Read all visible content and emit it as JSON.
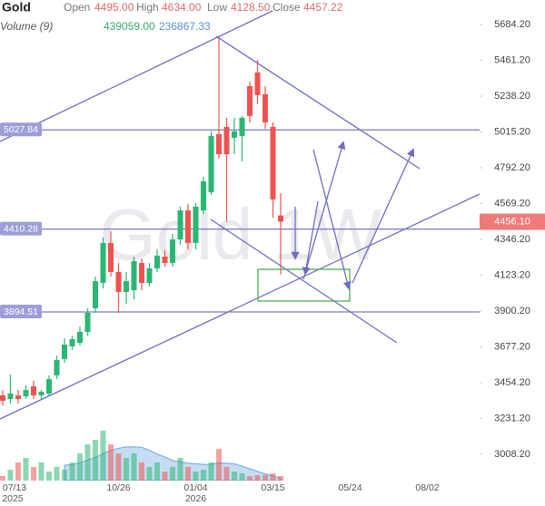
{
  "chart_data": {
    "type": "candlestick",
    "title": "Gold",
    "watermark": "Gold 1W",
    "header": {
      "open_label": "Open",
      "open": {
        "value": 4495,
        "label": "4495.00"
      },
      "high_label": "High",
      "high": {
        "value": 4634,
        "label": "4634.00"
      },
      "low_label": "Low",
      "low": {
        "value": 4128.5,
        "label": "4128.50"
      },
      "close_label": "Close",
      "close": 4457.22
    },
    "volume_header": {
      "label": "Volume (9)",
      "volume": {
        "value": 439059,
        "label": "439059.00"
      },
      "ma": 236867.33
    },
    "categories": [
      "07/13",
      null,
      null,
      null,
      null,
      null,
      null,
      null,
      null,
      null,
      null,
      null,
      null,
      null,
      null,
      "10/26",
      null,
      null,
      null,
      null,
      null,
      null,
      null,
      null,
      null,
      "01/04",
      null,
      null,
      null,
      null,
      null,
      null,
      null,
      null,
      null,
      "03/15",
      null,
      null,
      null,
      null,
      null,
      null,
      null,
      null,
      null,
      "05/24",
      null,
      null,
      null,
      null,
      null,
      null,
      null,
      null,
      null,
      "08/02",
      null,
      null,
      null,
      null,
      null,
      null
    ],
    "years": [
      "2025",
      null,
      null,
      null,
      null,
      null,
      null,
      null,
      null,
      null,
      null,
      null,
      null,
      null,
      null,
      null,
      null,
      null,
      null,
      null,
      null,
      null,
      null,
      null,
      null,
      "2026",
      null,
      null,
      null,
      null,
      null,
      null,
      null,
      null,
      null,
      null,
      null,
      null,
      null,
      null,
      null,
      null,
      null,
      null,
      null,
      null,
      null,
      null,
      null,
      null,
      null,
      null,
      null,
      null,
      null,
      null,
      null,
      null,
      null,
      null,
      null,
      null
    ],
    "open": [
      3375,
      3352,
      3375,
      3369,
      3431,
      3375,
      3386,
      3499,
      3601,
      3680,
      3702,
      3770,
      3917,
      4075,
      4324,
      4143,
      4019,
      4030,
      4199,
      4075,
      4166,
      4239,
      4199,
      4346,
      4527,
      4324,
      4527,
      4640,
      5002,
      5047,
      4979,
      4990,
      5301,
      5386,
      5250,
      5047,
      4495,
      null,
      null,
      null,
      null,
      null,
      null,
      null,
      null,
      null,
      null,
      null,
      null,
      null,
      null,
      null,
      null,
      null,
      null,
      null,
      null,
      null,
      null,
      null,
      null,
      null
    ],
    "high": [
      3408,
      3504,
      3408,
      3437,
      3465,
      3408,
      3499,
      3623,
      3731,
      3747,
      3804,
      3917,
      4115,
      4358,
      4397,
      4199,
      4143,
      4239,
      4228,
      4199,
      4284,
      4279,
      4380,
      4550,
      4567,
      4572,
      4736,
      5019,
      5612,
      5103,
      5103,
      5115,
      5329,
      5465,
      5301,
      5075,
      4634,
      null,
      null,
      null,
      null,
      null,
      null,
      null,
      null,
      null,
      null,
      null,
      null,
      null,
      null,
      null,
      null,
      null,
      null,
      null,
      null,
      null,
      null,
      null,
      null,
      null
    ],
    "low": [
      3312,
      3324,
      3324,
      3352,
      3352,
      3352,
      3369,
      3476,
      3578,
      3657,
      3685,
      3747,
      3889,
      4041,
      4115,
      3889,
      3945,
      3973,
      4030,
      4053,
      4143,
      4177,
      4177,
      4312,
      4284,
      4284,
      4505,
      4623,
      4849,
      4454,
      4877,
      4832,
      5075,
      5188,
      5036,
      4482,
      4128.5,
      null,
      null,
      null,
      null,
      null,
      null,
      null,
      null,
      null,
      null,
      null,
      null,
      null,
      null,
      null,
      null,
      null,
      null,
      null,
      null,
      null,
      null,
      null,
      null,
      null
    ],
    "close": [
      3341,
      3386,
      3352,
      3408,
      3375,
      3397,
      3476,
      3595,
      3691,
      3725,
      3770,
      3889,
      4086,
      4324,
      4143,
      4019,
      4086,
      4211,
      4075,
      4166,
      4245,
      4199,
      4346,
      4527,
      4324,
      4550,
      4708,
      4990,
      4877,
      4877,
      5019,
      5103,
      5115,
      5245,
      5075,
      4595,
      4457.22,
      null,
      null,
      null,
      null,
      null,
      null,
      null,
      null,
      null,
      null,
      null,
      null,
      null,
      null,
      null,
      null,
      null,
      null,
      null,
      null,
      null,
      null,
      null,
      null,
      null
    ],
    "up_color": "#2bb673",
    "down_color": "#ef5350",
    "volume": [
      440000,
      1060000,
      1770000,
      2210000,
      1330000,
      1770000,
      880000,
      1330000,
      1060000,
      1770000,
      2650000,
      3530000,
      3970000,
      4860000,
      3530000,
      2650000,
      2210000,
      2650000,
      1770000,
      1330000,
      1770000,
      880000,
      1330000,
      2210000,
      1330000,
      880000,
      1060000,
      1770000,
      3090000,
      1330000,
      880000,
      710000,
      440000,
      530000,
      530000,
      710000,
      439059,
      null,
      null,
      null,
      null,
      null,
      null,
      null,
      null,
      null,
      null,
      null,
      null,
      null,
      null,
      null,
      null,
      null,
      null,
      null,
      null,
      null,
      null,
      null,
      null,
      null
    ],
    "volume_ma": [
      null,
      null,
      null,
      null,
      null,
      null,
      null,
      null,
      1490000,
      1570000,
      1750000,
      2000000,
      2270000,
      2620000,
      2950000,
      3150000,
      3280000,
      3290000,
      3250000,
      2950000,
      2590000,
      2300000,
      1960000,
      1820000,
      1700000,
      1640000,
      1580000,
      1590000,
      1730000,
      1690000,
      1630000,
      1400000,
      1150000,
      900000,
      650000,
      450000,
      236867.33,
      null,
      null,
      null,
      null,
      null,
      null,
      null,
      null,
      null,
      null,
      null,
      null,
      null,
      null,
      null,
      null,
      null,
      null,
      null,
      null,
      null,
      null,
      null,
      null,
      null
    ],
    "volume_lim": [
      0,
      5300000
    ],
    "volume_ma_color": "#9fc7ea",
    "ylim": [
      2844,
      5837
    ],
    "yticks": [
      {
        "value": 5684.2,
        "label": "5684.20"
      },
      {
        "value": 5461.2,
        "label": "5461.20"
      },
      {
        "value": 5238.2,
        "label": "5238.20"
      },
      {
        "value": 5015.2,
        "label": "5015.20"
      },
      {
        "value": 4792.2,
        "label": "4792.20"
      },
      {
        "value": 4569.2,
        "label": "4569.20"
      },
      {
        "value": 4346.2,
        "label": "4346.20"
      },
      {
        "value": 4123.2,
        "label": "4123.20"
      },
      {
        "value": 3900.2,
        "label": "3900.20"
      },
      {
        "value": 3677.2,
        "label": "3677.20"
      },
      {
        "value": 3454.2,
        "label": "3454.20"
      },
      {
        "value": 3231.2,
        "label": "3231.20"
      },
      {
        "value": 3008.2,
        "label": "3008.20"
      }
    ],
    "levels": [
      5027.84,
      4410.28,
      3894.51
    ],
    "level_color": "#7b7bc0",
    "last_price": {
      "value": 4456.1,
      "label": "4456.10"
    },
    "last_price_color": "#f07a7a"
  }
}
